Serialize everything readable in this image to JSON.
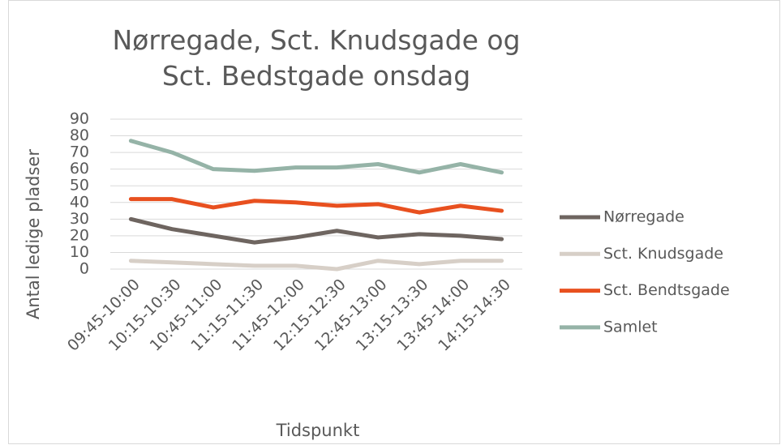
{
  "chart_data": {
    "type": "line",
    "title": "Nørregade, Sct. Knudsgade og Sct. Bedstgade onsdag",
    "x_label": "Tidspunkt",
    "y_label": "Antal ledige pladser",
    "categories": [
      "09:45-10:00",
      "10:15-10:30",
      "10:45-11:00",
      "11:15-11:30",
      "11:45-12:00",
      "12:15-12:30",
      "12:45-13:00",
      "13:15-13:30",
      "13:45-14:00",
      "14:15-14:30"
    ],
    "series": [
      {
        "name": "Nørregade",
        "color": "#6e6560",
        "values": [
          30,
          24,
          20,
          16,
          19,
          23,
          19,
          21,
          20,
          18
        ]
      },
      {
        "name": "Sct. Knudsgade",
        "color": "#d7cfc7",
        "values": [
          5,
          4,
          3,
          2,
          2,
          0,
          5,
          3,
          5,
          5
        ]
      },
      {
        "name": "Sct. Bendtsgade",
        "color": "#e8501f",
        "values": [
          42,
          42,
          37,
          41,
          40,
          38,
          39,
          34,
          38,
          35
        ]
      },
      {
        "name": "Samlet",
        "color": "#95b3a7",
        "values": [
          77,
          70,
          60,
          59,
          61,
          61,
          63,
          58,
          63,
          58
        ]
      }
    ],
    "ylim": [
      0,
      90
    ],
    "yticks": [
      0,
      10,
      20,
      30,
      40,
      50,
      60,
      70,
      80,
      90
    ],
    "grid": true,
    "legend": "right"
  }
}
